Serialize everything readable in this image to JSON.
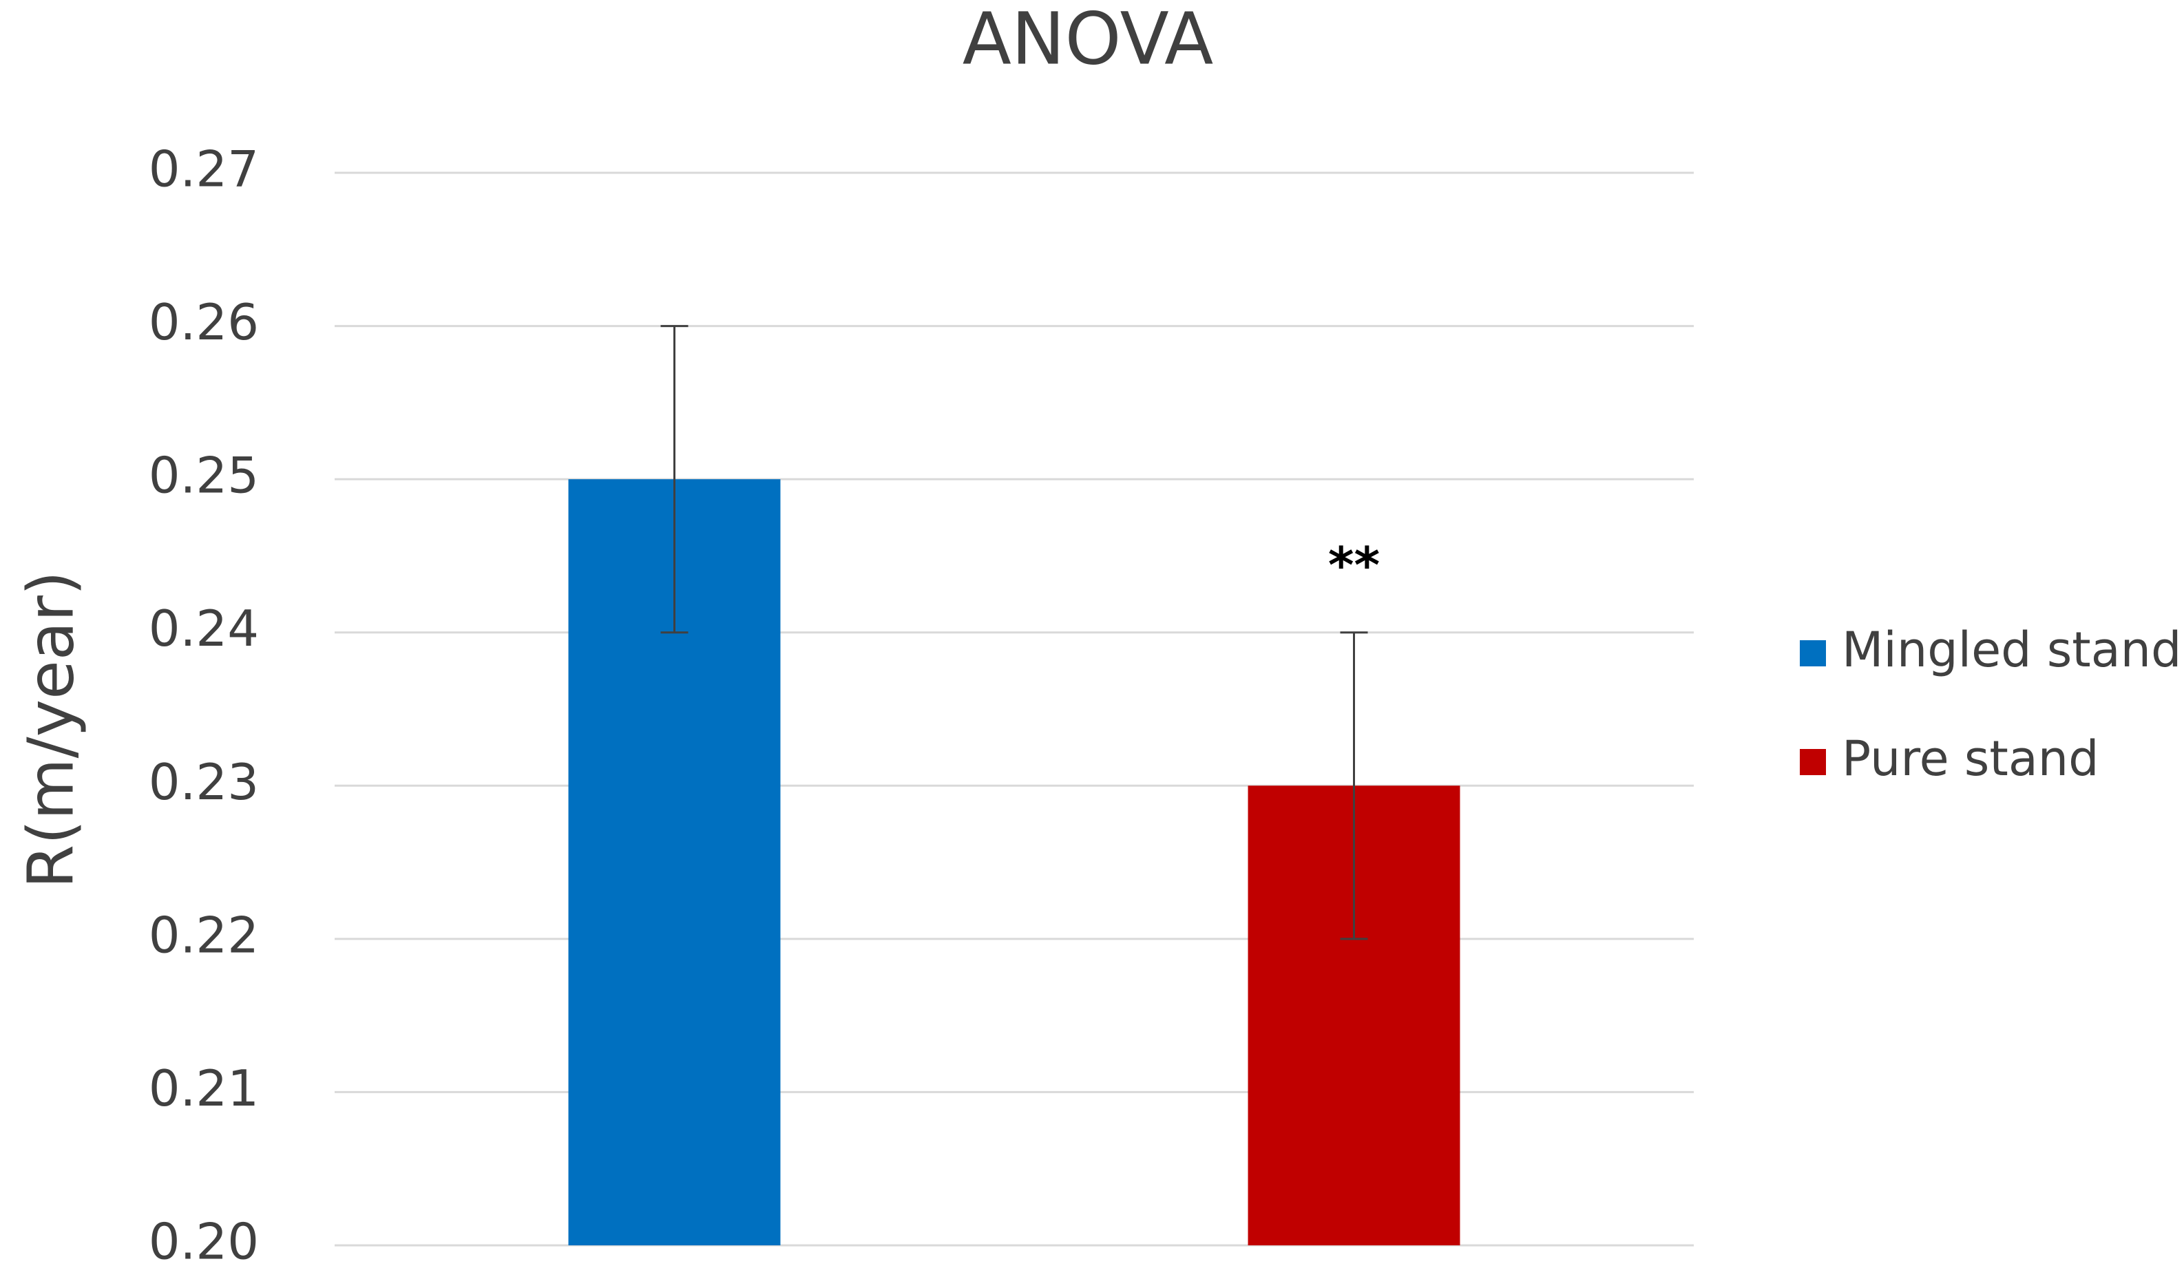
{
  "chart_data": {
    "type": "bar",
    "title": "ANOVA",
    "y_label": "R(m/year)",
    "categories": [
      null
    ],
    "series": [
      {
        "name": "Mingled stand",
        "color": "#0070c0",
        "values": [
          0.25
        ],
        "errors": [
          0.01
        ]
      },
      {
        "name": "Pure stand",
        "color": "#c00000",
        "values": [
          0.23
        ],
        "errors": [
          0.01
        ]
      }
    ],
    "annotations": [
      {
        "text": "**",
        "series": 1
      }
    ],
    "ylim": [
      0.2,
      0.27
    ],
    "yticks": [
      {
        "value": 0.2,
        "label": "0.20"
      },
      0.21,
      0.22,
      0.23,
      0.24,
      0.25,
      0.26,
      0.27
    ],
    "grid": true,
    "legend": "right"
  }
}
